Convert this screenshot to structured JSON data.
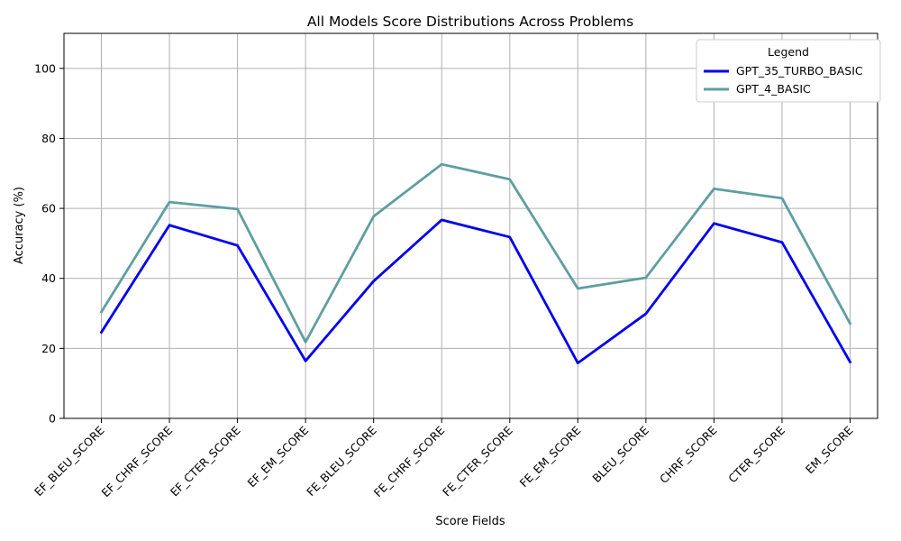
{
  "chart_data": {
    "type": "line",
    "title": "All Models Score Distributions Across Problems",
    "xlabel": "Score Fields",
    "ylabel": "Accuracy (%)",
    "ylim": [
      0,
      110
    ],
    "yticks": [
      0,
      20,
      40,
      60,
      80,
      100
    ],
    "grid": true,
    "legend": {
      "title": "Legend",
      "position": "top-right"
    },
    "categories": [
      "EF_BLEU_SCORE",
      "EF_CHRF_SCORE",
      "EF_CTER_SCORE",
      "EF_EM_SCORE",
      "FE_BLEU_SCORE",
      "FE_CHRF_SCORE",
      "FE_CTER_SCORE",
      "FE_EM_SCORE",
      "BLEU_SCORE",
      "CHRF_SCORE",
      "CTER_SCORE",
      "EM_SCORE"
    ],
    "series": [
      {
        "name": "GPT_35_TURBO_BASIC",
        "color": "#0000ee",
        "values": [
          24.6,
          55.2,
          49.4,
          16.4,
          39.2,
          56.7,
          51.8,
          15.8,
          29.9,
          55.7,
          50.3,
          16.1
        ]
      },
      {
        "name": "GPT_4_BASIC",
        "color": "#5f9ea0",
        "values": [
          30.4,
          61.8,
          59.8,
          21.8,
          57.7,
          72.6,
          68.3,
          37.1,
          40.2,
          65.6,
          62.9,
          27.1
        ]
      }
    ]
  }
}
